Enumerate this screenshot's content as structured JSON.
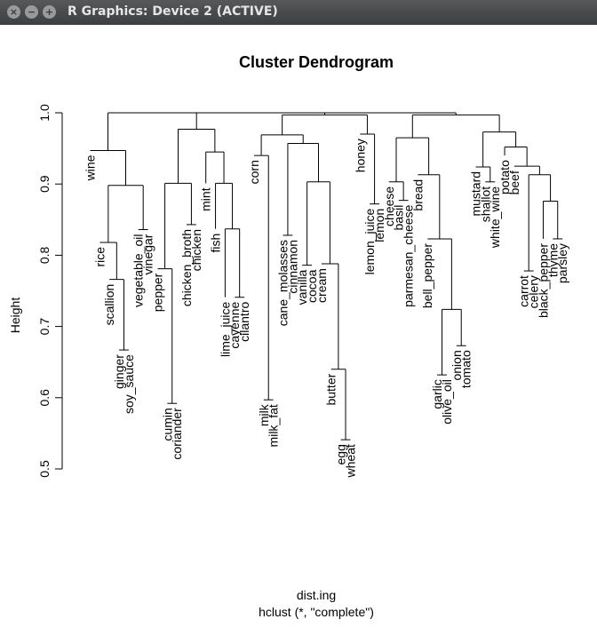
{
  "window": {
    "title": "R Graphics: Device 2 (ACTIVE)",
    "close_icon": "×",
    "minimize_icon": "−",
    "maximize_icon": "+"
  },
  "chart_data": {
    "type": "dendrogram",
    "title": "Cluster Dendrogram",
    "xlabel": "dist.ing",
    "subtitle": "hclust (*, \"complete\")",
    "ylabel": "Height",
    "ylim": [
      0.5,
      1.0
    ],
    "yticks": [
      "0.5",
      "0.6",
      "0.7",
      "0.8",
      "0.9",
      "1.0"
    ],
    "leaves": [
      {
        "label": "wine",
        "height": 0.947
      },
      {
        "label": "rice",
        "height": 0.818
      },
      {
        "label": "scallion",
        "height": 0.766
      },
      {
        "label": "ginger",
        "height": 0.667
      },
      {
        "label": "soy_sauce",
        "height": 0.667
      },
      {
        "label": "vegetable_oil",
        "height": 0.836
      },
      {
        "label": "vinegar",
        "height": 0.836
      },
      {
        "label": "pepper",
        "height": 0.781
      },
      {
        "label": "cumin",
        "height": 0.592
      },
      {
        "label": "coriander",
        "height": 0.592
      },
      {
        "label": "chicken_broth",
        "height": 0.843
      },
      {
        "label": "chicken",
        "height": 0.843
      },
      {
        "label": "mint",
        "height": 0.901
      },
      {
        "label": "fish",
        "height": 0.837
      },
      {
        "label": "lime_juice",
        "height": 0.741
      },
      {
        "label": "cayenne",
        "height": 0.741
      },
      {
        "label": "cilantro",
        "height": 0.741
      },
      {
        "label": "corn",
        "height": 0.94
      },
      {
        "label": "milk",
        "height": 0.597
      },
      {
        "label": "milk_fat",
        "height": 0.597
      },
      {
        "label": "cane_molasses",
        "height": 0.828
      },
      {
        "label": "cinnamon",
        "height": 0.828
      },
      {
        "label": "vanilla",
        "height": 0.786
      },
      {
        "label": "cocoa",
        "height": 0.786
      },
      {
        "label": "cream",
        "height": 0.788
      },
      {
        "label": "butter",
        "height": 0.64
      },
      {
        "label": "egg",
        "height": 0.541
      },
      {
        "label": "wheat",
        "height": 0.541
      },
      {
        "label": "honey",
        "height": 0.97
      },
      {
        "label": "lemon_juice",
        "height": 0.872
      },
      {
        "label": "lemon",
        "height": 0.872
      },
      {
        "label": "cheese",
        "height": 0.903
      },
      {
        "label": "basil",
        "height": 0.877
      },
      {
        "label": "parmesan_cheese",
        "height": 0.877
      },
      {
        "label": "bread",
        "height": 0.913
      },
      {
        "label": "bell_pepper",
        "height": 0.823
      },
      {
        "label": "garlic",
        "height": 0.632
      },
      {
        "label": "olive_oil",
        "height": 0.632
      },
      {
        "label": "onion",
        "height": 0.673
      },
      {
        "label": "tomato",
        "height": 0.673
      },
      {
        "label": "mustard",
        "height": 0.924
      },
      {
        "label": "shallot",
        "height": 0.903
      },
      {
        "label": "white_wine",
        "height": 0.903
      },
      {
        "label": "potato",
        "height": 0.94
      },
      {
        "label": "beef",
        "height": 0.925
      },
      {
        "label": "carrot",
        "height": 0.778
      },
      {
        "label": "celery",
        "height": 0.778
      },
      {
        "label": "black_pepper",
        "height": 0.823
      },
      {
        "label": "thyme",
        "height": 0.823
      },
      {
        "label": "parsley",
        "height": 0.823
      }
    ],
    "merges": [
      {
        "left": "ginger",
        "right": "soy_sauce",
        "height": 0.667
      },
      {
        "left": "scallion",
        "right": "ginger+soy_sauce",
        "height": 0.766
      },
      {
        "left": "rice",
        "right": "scallion+ginger+soy_sauce",
        "height": 0.818
      },
      {
        "left": "vegetable_oil",
        "right": "vinegar",
        "height": 0.836
      },
      {
        "left": "rice group",
        "right": "vegetable_oil+vinegar",
        "height": 0.898
      },
      {
        "left": "wine",
        "right": "rice/vegetable_oil group",
        "height": 0.947
      },
      {
        "left": "cumin",
        "right": "coriander",
        "height": 0.592
      },
      {
        "left": "pepper",
        "right": "cumin+coriander",
        "height": 0.781
      },
      {
        "left": "chicken_broth",
        "right": "chicken",
        "height": 0.843
      },
      {
        "left": "pepper group",
        "right": "chicken_broth+chicken",
        "height": 0.901
      },
      {
        "left": "cayenne",
        "right": "cilantro",
        "height": 0.741
      },
      {
        "left": "lime_juice",
        "right": "cayenne+cilantro",
        "height": 0.837
      },
      {
        "left": "fish",
        "right": "lime_juice group",
        "height": 0.901
      },
      {
        "left": "mint",
        "right": "fish group",
        "height": 0.945
      },
      {
        "left": "pepper/chicken group",
        "right": "mint group",
        "height": 0.977
      },
      {
        "left": "wine group",
        "right": "pepper/mint group",
        "height": 1.0
      },
      {
        "left": "milk",
        "right": "milk_fat",
        "height": 0.597
      },
      {
        "left": "corn",
        "right": "milk+milk_fat",
        "height": 0.94
      },
      {
        "left": "cane_molasses",
        "right": "cinnamon",
        "height": 0.828
      },
      {
        "left": "vanilla",
        "right": "cocoa",
        "height": 0.786
      },
      {
        "left": "egg",
        "right": "wheat",
        "height": 0.541
      },
      {
        "left": "butter",
        "right": "egg+wheat",
        "height": 0.64
      },
      {
        "left": "cream",
        "right": "butter group",
        "height": 0.788
      },
      {
        "left": "vanilla+cocoa",
        "right": "cream group",
        "height": 0.903
      },
      {
        "left": "cane_molasses+cinnamon",
        "right": "vanilla/cream group",
        "height": 0.957
      },
      {
        "left": "corn group",
        "right": "cane_molasses group",
        "height": 0.969
      },
      {
        "left": "lemon_juice",
        "right": "lemon",
        "height": 0.872
      },
      {
        "left": "honey",
        "right": "lemon_juice+lemon",
        "height": 0.97
      },
      {
        "left": "corn/cane group",
        "right": "honey group",
        "height": 0.997
      },
      {
        "left": "basil",
        "right": "parmesan_cheese",
        "height": 0.877
      },
      {
        "left": "cheese",
        "right": "basil+parmesan_cheese",
        "height": 0.903
      },
      {
        "left": "onion",
        "right": "tomato",
        "height": 0.673
      },
      {
        "left": "garlic",
        "right": "olive_oil",
        "height": 0.632
      },
      {
        "left": "garlic+olive_oil",
        "right": "onion+tomato",
        "height": 0.724
      },
      {
        "left": "bell_pepper",
        "right": "garlic/onion group",
        "height": 0.823
      },
      {
        "left": "bread",
        "right": "bell_pepper group",
        "height": 0.913
      },
      {
        "left": "cheese group",
        "right": "bread group",
        "height": 0.965
      },
      {
        "left": "shallot",
        "right": "white_wine",
        "height": 0.903
      },
      {
        "left": "mustard",
        "right": "shallot+white_wine",
        "height": 0.924
      },
      {
        "left": "carrot",
        "right": "celery",
        "height": 0.778
      },
      {
        "left": "thyme",
        "right": "parsley",
        "height": 0.823
      },
      {
        "left": "black_pepper",
        "right": "thyme+parsley",
        "height": 0.876
      },
      {
        "left": "carrot+celery",
        "right": "black_pepper group",
        "height": 0.913
      },
      {
        "left": "beef",
        "right": "carrot/pepper group",
        "height": 0.925
      },
      {
        "left": "potato",
        "right": "beef group",
        "height": 0.952
      },
      {
        "left": "mustard group",
        "right": "potato group",
        "height": 0.973
      },
      {
        "left": "cheese/bread group",
        "right": "mustard/potato group",
        "height": 0.997
      },
      {
        "left": "corn/honey group",
        "right": "cheese/mustard group",
        "height": 1.0
      },
      {
        "left": "wine/mint group",
        "right": "corn/mustard group",
        "height": 1.0
      }
    ]
  }
}
